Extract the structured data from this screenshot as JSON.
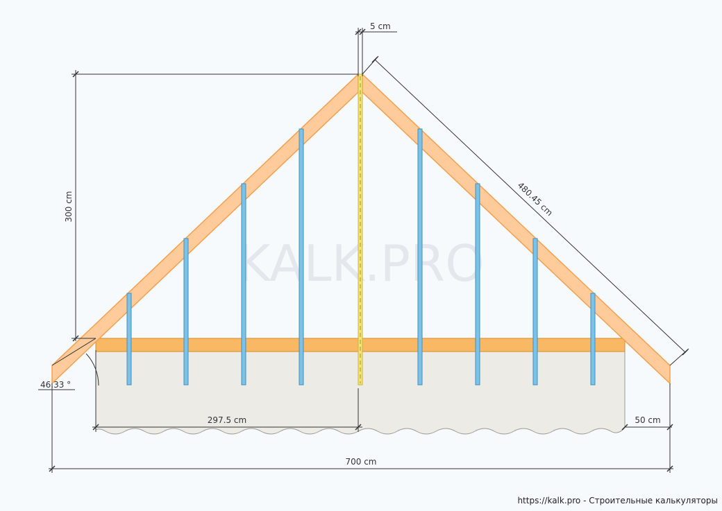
{
  "watermark": "KALK.PRO",
  "footer": "https://kalk.pro - Строительные калькуляторы",
  "dimensions": {
    "ridge_width": "5 cm",
    "rafter_length": "480.45 cm",
    "height": "300 cm",
    "angle": "46.33 °",
    "half_span": "297.5 cm",
    "overhang": "50 cm",
    "total_width": "700 cm"
  },
  "colors": {
    "rafter": "#ffcb9a",
    "rafter_edge": "#f4a050",
    "beam": "#f9b864",
    "stud": "#7cc2e6",
    "stud_edge": "#3f8fbd",
    "ridge": "#f3e47a",
    "wall": "#ecebe6",
    "dim_line": "#333333"
  }
}
